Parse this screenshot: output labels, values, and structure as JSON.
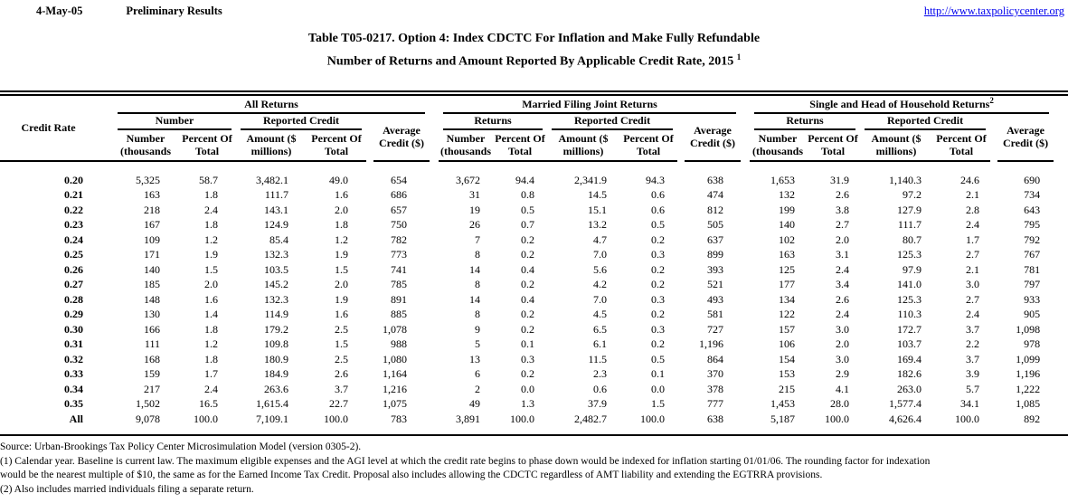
{
  "colors": {
    "background": "#FFFFFF",
    "text": "#000000",
    "link": "#0000EE"
  },
  "header": {
    "date": "4-May-05",
    "status": "Preliminary Results",
    "url": "http://www.taxpolicycenter.org"
  },
  "title": {
    "line1": "Table T05-0217. Option 4: Index CDCTC For Inflation and Make Fully Refundable",
    "line2_text": "Number of Returns and Amount Reported By Applicable Credit Rate, 2015",
    "line2_sup": "1"
  },
  "table": {
    "credit_rate_header": "Credit Rate",
    "groups": [
      {
        "label": "All Returns",
        "superscript": "",
        "returns_label": "Number",
        "reported_label": "Reported Credit"
      },
      {
        "label": "Married Filing Joint Returns",
        "superscript": "",
        "returns_label": "Returns",
        "reported_label": "Reported Credit"
      },
      {
        "label": "Single and Head of Household Returns",
        "superscript": "2",
        "returns_label": "Returns",
        "reported_label": "Reported Credit"
      }
    ],
    "subheaders": {
      "number_l1": "Number",
      "number_l2": "(thousands",
      "pct_l1": "Percent Of",
      "pct_l2": "Total",
      "amt_l1": "Amount ($",
      "amt_l2": "millions)",
      "avg_l1": "Average",
      "avg_l2": "Credit ($)"
    },
    "rows": [
      {
        "rate": "0.20",
        "all": [
          "5,325",
          "58.7",
          "3,482.1",
          "49.0",
          "654"
        ],
        "mfj": [
          "3,672",
          "94.4",
          "2,341.9",
          "94.3",
          "638"
        ],
        "single": [
          "1,653",
          "31.9",
          "1,140.3",
          "24.6",
          "690"
        ]
      },
      {
        "rate": "0.21",
        "all": [
          "163",
          "1.8",
          "111.7",
          "1.6",
          "686"
        ],
        "mfj": [
          "31",
          "0.8",
          "14.5",
          "0.6",
          "474"
        ],
        "single": [
          "132",
          "2.6",
          "97.2",
          "2.1",
          "734"
        ]
      },
      {
        "rate": "0.22",
        "all": [
          "218",
          "2.4",
          "143.1",
          "2.0",
          "657"
        ],
        "mfj": [
          "19",
          "0.5",
          "15.1",
          "0.6",
          "812"
        ],
        "single": [
          "199",
          "3.8",
          "127.9",
          "2.8",
          "643"
        ]
      },
      {
        "rate": "0.23",
        "all": [
          "167",
          "1.8",
          "124.9",
          "1.8",
          "750"
        ],
        "mfj": [
          "26",
          "0.7",
          "13.2",
          "0.5",
          "505"
        ],
        "single": [
          "140",
          "2.7",
          "111.7",
          "2.4",
          "795"
        ]
      },
      {
        "rate": "0.24",
        "all": [
          "109",
          "1.2",
          "85.4",
          "1.2",
          "782"
        ],
        "mfj": [
          "7",
          "0.2",
          "4.7",
          "0.2",
          "637"
        ],
        "single": [
          "102",
          "2.0",
          "80.7",
          "1.7",
          "792"
        ]
      },
      {
        "rate": "0.25",
        "all": [
          "171",
          "1.9",
          "132.3",
          "1.9",
          "773"
        ],
        "mfj": [
          "8",
          "0.2",
          "7.0",
          "0.3",
          "899"
        ],
        "single": [
          "163",
          "3.1",
          "125.3",
          "2.7",
          "767"
        ]
      },
      {
        "rate": "0.26",
        "all": [
          "140",
          "1.5",
          "103.5",
          "1.5",
          "741"
        ],
        "mfj": [
          "14",
          "0.4",
          "5.6",
          "0.2",
          "393"
        ],
        "single": [
          "125",
          "2.4",
          "97.9",
          "2.1",
          "781"
        ]
      },
      {
        "rate": "0.27",
        "all": [
          "185",
          "2.0",
          "145.2",
          "2.0",
          "785"
        ],
        "mfj": [
          "8",
          "0.2",
          "4.2",
          "0.2",
          "521"
        ],
        "single": [
          "177",
          "3.4",
          "141.0",
          "3.0",
          "797"
        ]
      },
      {
        "rate": "0.28",
        "all": [
          "148",
          "1.6",
          "132.3",
          "1.9",
          "891"
        ],
        "mfj": [
          "14",
          "0.4",
          "7.0",
          "0.3",
          "493"
        ],
        "single": [
          "134",
          "2.6",
          "125.3",
          "2.7",
          "933"
        ]
      },
      {
        "rate": "0.29",
        "all": [
          "130",
          "1.4",
          "114.9",
          "1.6",
          "885"
        ],
        "mfj": [
          "8",
          "0.2",
          "4.5",
          "0.2",
          "581"
        ],
        "single": [
          "122",
          "2.4",
          "110.3",
          "2.4",
          "905"
        ]
      },
      {
        "rate": "0.30",
        "all": [
          "166",
          "1.8",
          "179.2",
          "2.5",
          "1,078"
        ],
        "mfj": [
          "9",
          "0.2",
          "6.5",
          "0.3",
          "727"
        ],
        "single": [
          "157",
          "3.0",
          "172.7",
          "3.7",
          "1,098"
        ]
      },
      {
        "rate": "0.31",
        "all": [
          "111",
          "1.2",
          "109.8",
          "1.5",
          "988"
        ],
        "mfj": [
          "5",
          "0.1",
          "6.1",
          "0.2",
          "1,196"
        ],
        "single": [
          "106",
          "2.0",
          "103.7",
          "2.2",
          "978"
        ]
      },
      {
        "rate": "0.32",
        "all": [
          "168",
          "1.8",
          "180.9",
          "2.5",
          "1,080"
        ],
        "mfj": [
          "13",
          "0.3",
          "11.5",
          "0.5",
          "864"
        ],
        "single": [
          "154",
          "3.0",
          "169.4",
          "3.7",
          "1,099"
        ]
      },
      {
        "rate": "0.33",
        "all": [
          "159",
          "1.7",
          "184.9",
          "2.6",
          "1,164"
        ],
        "mfj": [
          "6",
          "0.2",
          "2.3",
          "0.1",
          "370"
        ],
        "single": [
          "153",
          "2.9",
          "182.6",
          "3.9",
          "1,196"
        ]
      },
      {
        "rate": "0.34",
        "all": [
          "217",
          "2.4",
          "263.6",
          "3.7",
          "1,216"
        ],
        "mfj": [
          "2",
          "0.0",
          "0.6",
          "0.0",
          "378"
        ],
        "single": [
          "215",
          "4.1",
          "263.0",
          "5.7",
          "1,222"
        ]
      },
      {
        "rate": "0.35",
        "all": [
          "1,502",
          "16.5",
          "1,615.4",
          "22.7",
          "1,075"
        ],
        "mfj": [
          "49",
          "1.3",
          "37.9",
          "1.5",
          "777"
        ],
        "single": [
          "1,453",
          "28.0",
          "1,577.4",
          "34.1",
          "1,085"
        ]
      },
      {
        "rate": "All",
        "all": [
          "9,078",
          "100.0",
          "7,109.1",
          "100.0",
          "783"
        ],
        "mfj": [
          "3,891",
          "100.0",
          "2,482.7",
          "100.0",
          "638"
        ],
        "single": [
          "5,187",
          "100.0",
          "4,626.4",
          "100.0",
          "892"
        ]
      }
    ]
  },
  "footer": {
    "source": "Source: Urban-Brookings Tax Policy Center Microsimulation Model (version 0305-2).",
    "note1_line1": "(1) Calendar year. Baseline is current law. The maximum eligible expenses and the AGI level at which the credit rate begins to phase down would be indexed for inflation starting 01/01/06.  The rounding factor for indexation",
    "note1_line2": "would be the nearest multiple of $10, the same as for the Earned Income Tax Credit.  Proposal also includes allowing the CDCTC regardless of AMT liability and extending the EGTRRA provisions.",
    "note2": "(2) Also includes married individuals filing a separate return."
  }
}
